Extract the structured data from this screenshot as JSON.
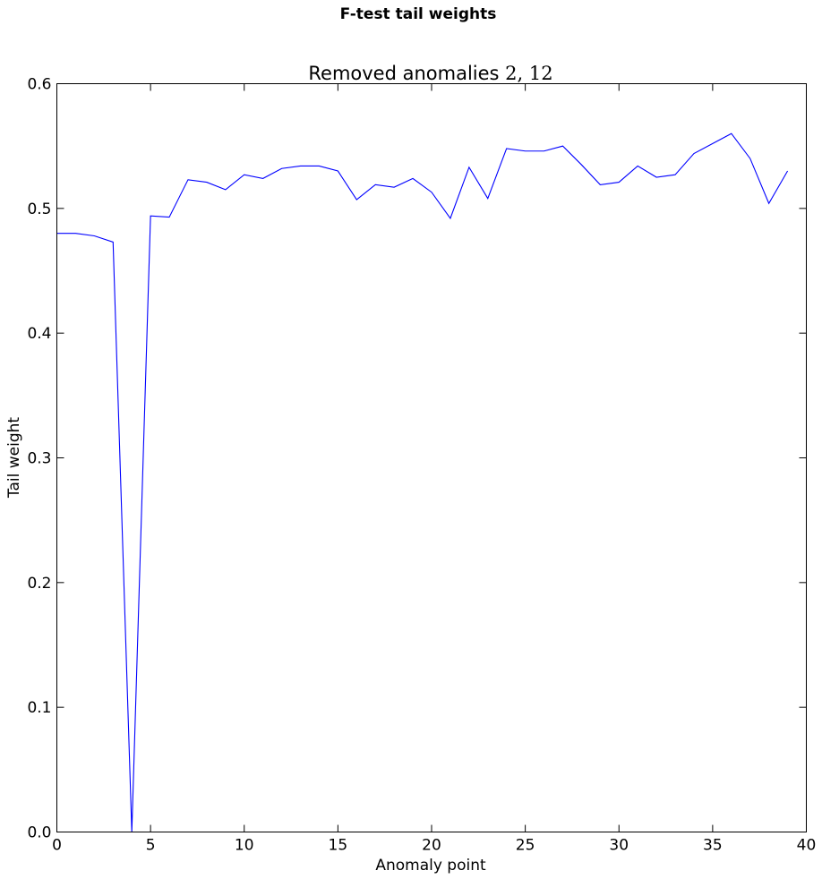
{
  "figure": {
    "suptitle": "F-test tail weights"
  },
  "chart_data": {
    "type": "line",
    "title_text": "Removed anomalies ",
    "title_math": "2, 12",
    "xlabel": "Anomaly point",
    "ylabel": "Tail weight",
    "xlim": [
      0,
      40
    ],
    "ylim": [
      0,
      0.6
    ],
    "xticks": [
      0,
      5,
      10,
      15,
      20,
      25,
      30,
      35,
      40
    ],
    "xtick_labels": [
      "0",
      "5",
      "10",
      "15",
      "20",
      "25",
      "30",
      "35",
      "40"
    ],
    "yticks": [
      0,
      0.1,
      0.2,
      0.3,
      0.4,
      0.5,
      0.6
    ],
    "ytick_labels": [
      "0.0",
      "0.1",
      "0.2",
      "0.3",
      "0.4",
      "0.5",
      "0.6"
    ],
    "grid": false,
    "line_color": "#0000ff",
    "series": [
      {
        "x": [
          0,
          1,
          2,
          3,
          4,
          5,
          6,
          7,
          8,
          9,
          10,
          11,
          12,
          13,
          14,
          15,
          16,
          17,
          18,
          19,
          20,
          21,
          22,
          23,
          24,
          25,
          26,
          27,
          28,
          29,
          30,
          31,
          32,
          33,
          34,
          35,
          36,
          37,
          38,
          39
        ],
        "values": [
          0.48,
          0.48,
          0.478,
          0.473,
          0.0,
          0.494,
          0.493,
          0.523,
          0.521,
          0.515,
          0.527,
          0.524,
          0.532,
          0.534,
          0.534,
          0.53,
          0.507,
          0.519,
          0.517,
          0.524,
          0.513,
          0.492,
          0.533,
          0.508,
          0.548,
          0.546,
          0.546,
          0.55,
          0.535,
          0.519,
          0.521,
          0.534,
          0.525,
          0.527,
          0.544,
          0.552,
          0.56,
          0.54,
          0.504,
          0.53
        ]
      }
    ]
  }
}
